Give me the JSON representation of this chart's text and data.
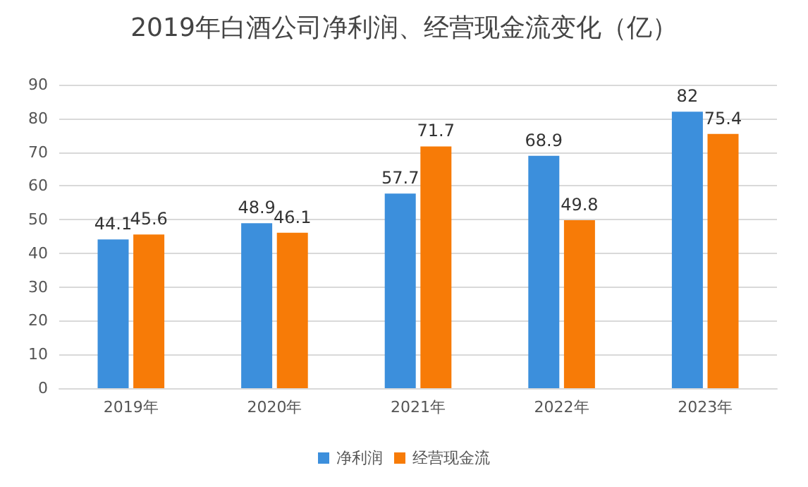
{
  "chart_data": {
    "type": "bar",
    "title": "2019年白酒公司净利润、经营现金流变化（亿）",
    "categories": [
      "2019年",
      "2020年",
      "2021年",
      "2022年",
      "2023年"
    ],
    "series": [
      {
        "name": "净利润",
        "color": "#3c8fdc",
        "values": [
          44.1,
          48.9,
          57.7,
          68.9,
          82
        ]
      },
      {
        "name": "经营现金流",
        "color": "#f77b07",
        "values": [
          45.6,
          46.1,
          71.7,
          49.8,
          75.4
        ]
      }
    ],
    "ylim": [
      0,
      90
    ],
    "yticks": [
      0,
      10,
      20,
      30,
      40,
      50,
      60,
      70,
      80,
      90
    ],
    "grid": "y",
    "legend": "bottom",
    "data_labels": true
  }
}
